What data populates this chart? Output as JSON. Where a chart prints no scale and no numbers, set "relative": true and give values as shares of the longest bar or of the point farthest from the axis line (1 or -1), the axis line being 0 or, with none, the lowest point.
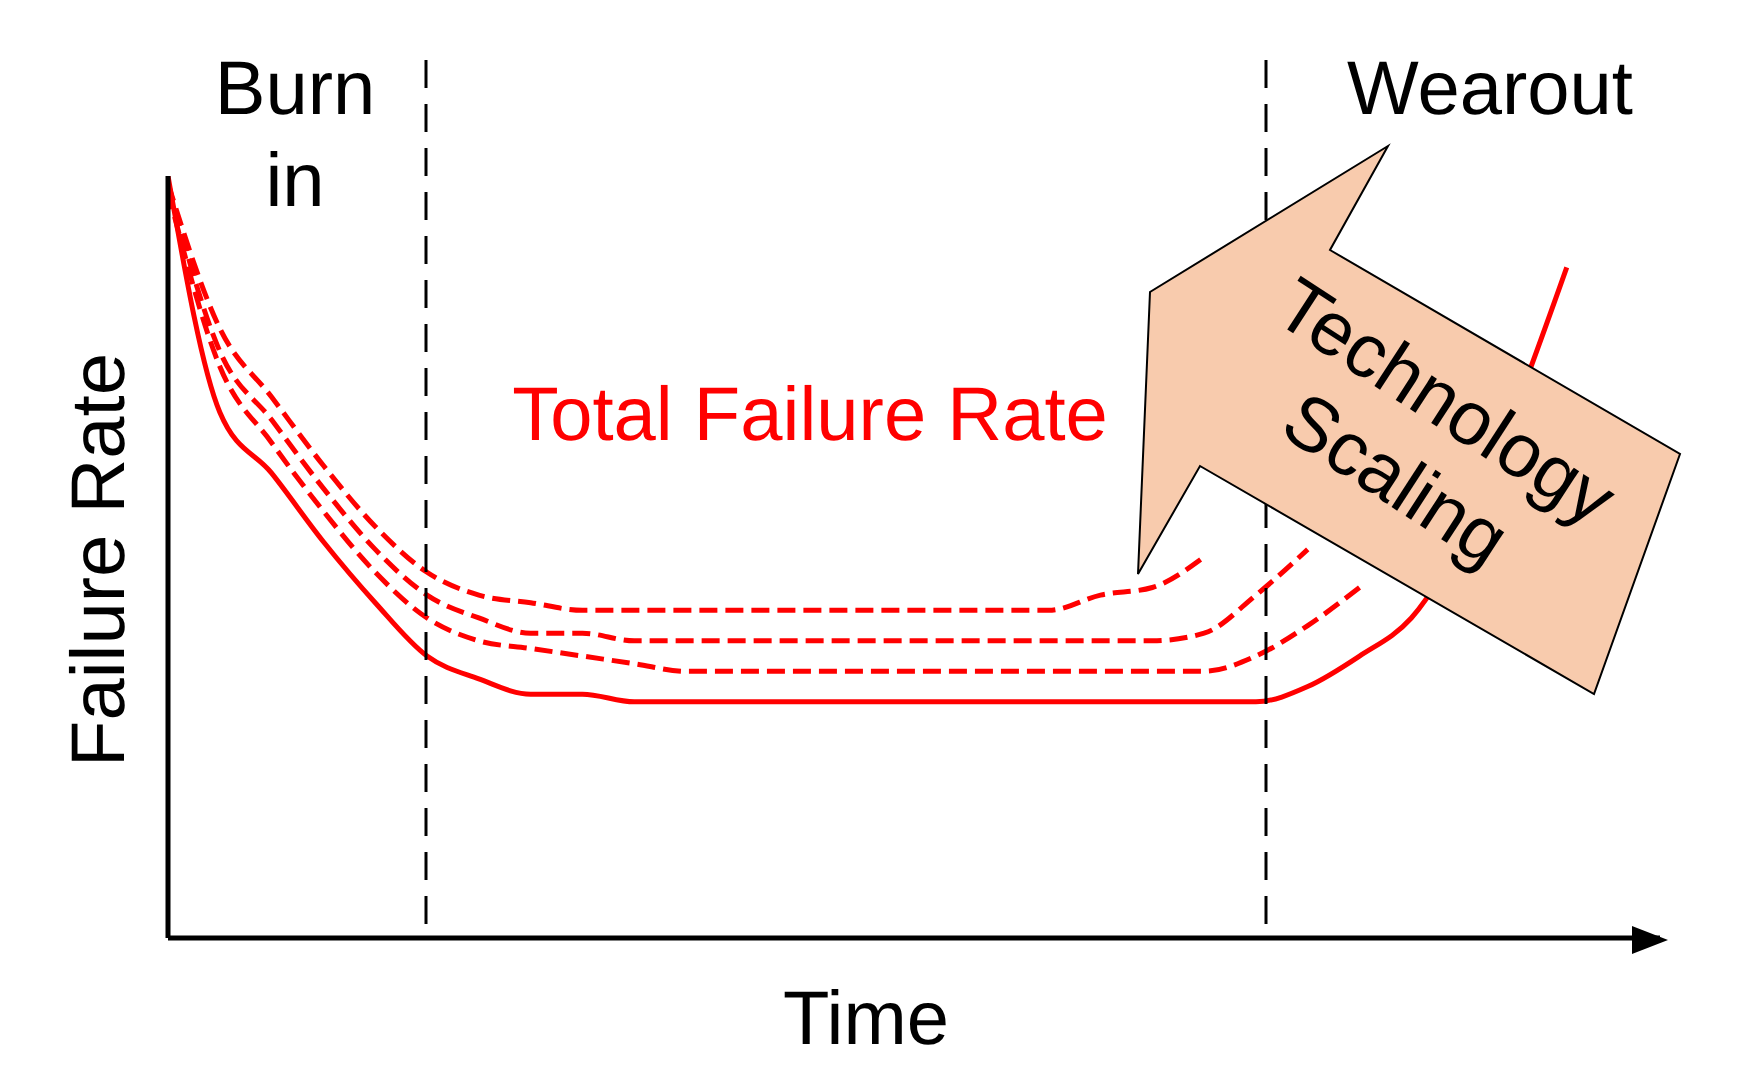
{
  "chart_data": {
    "type": "line",
    "relative": true,
    "xlabel": "Time",
    "ylabel": "Failure Rate",
    "legend": false,
    "grid": false,
    "marker": "none",
    "categories": [
      null,
      null,
      null,
      null,
      null,
      null,
      null,
      null,
      null,
      null,
      null,
      null,
      null,
      null,
      null,
      null,
      null,
      null,
      null,
      null,
      null,
      null,
      null,
      null,
      null,
      null,
      null,
      null
    ],
    "series": [
      {
        "color": "#ff0000",
        "line_style": "solid",
        "values": [
          1,
          0.69,
          0.61,
          0.52,
          0.44,
          0.37,
          0.34,
          0.32,
          0.32,
          0.31,
          0.31,
          0.31,
          0.31,
          0.31,
          0.31,
          0.31,
          0.31,
          0.31,
          0.31,
          0.31,
          0.31,
          0.31,
          0.33,
          0.37,
          0.42,
          null,
          null,
          0.88
        ]
      },
      {
        "color": "#ff0000",
        "line_style": "dashed",
        "values": [
          0.98,
          0.75,
          0.65,
          0.56,
          0.48,
          0.42,
          0.39,
          0.38,
          0.37,
          0.36,
          0.35,
          0.35,
          0.35,
          0.35,
          0.35,
          0.35,
          0.35,
          0.35,
          0.35,
          0.35,
          0.35,
          0.37,
          0.41,
          0.46,
          null,
          null,
          null,
          null
        ]
      },
      {
        "color": "#ff0000",
        "line_style": "dashed",
        "values": [
          0.99,
          0.77,
          0.68,
          0.59,
          0.51,
          0.45,
          0.42,
          0.4,
          0.4,
          0.39,
          0.39,
          0.39,
          0.39,
          0.39,
          0.39,
          0.39,
          0.39,
          0.39,
          0.39,
          0.39,
          0.4,
          0.45,
          0.51,
          null,
          null,
          null,
          null,
          null
        ]
      },
      {
        "color": "#ff0000",
        "line_style": "dashed",
        "values": [
          0.99,
          0.8,
          0.71,
          0.62,
          0.54,
          0.48,
          0.45,
          0.44,
          0.43,
          0.43,
          0.43,
          0.43,
          0.43,
          0.43,
          0.43,
          0.43,
          0.43,
          0.43,
          0.45,
          0.46,
          0.5,
          null,
          null,
          null,
          null,
          null,
          null,
          null
        ]
      }
    ],
    "annotations": [
      "Burn in",
      "Wearout",
      "Total Failure Rate",
      "Technology Scaling"
    ]
  }
}
